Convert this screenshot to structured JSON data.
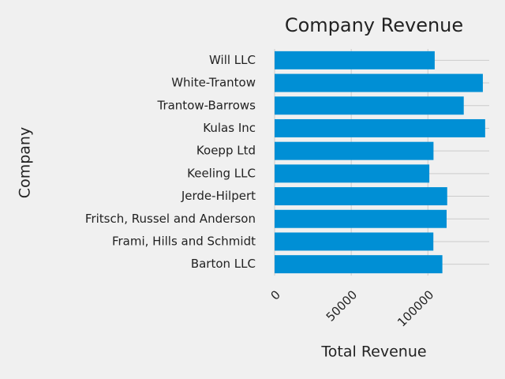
{
  "chart_data": {
    "type": "barh",
    "title": "Company Revenue",
    "xlabel": "Total Revenue",
    "ylabel": "Company",
    "categories": [
      "Barton LLC",
      "Frami, Hills and Schmidt",
      "Fritsch, Russel and Anderson",
      "Jerde-Hilpert",
      "Keeling LLC",
      "Koepp Ltd",
      "Kulas Inc",
      "Trantow-Barrows",
      "White-Trantow",
      "Will LLC"
    ],
    "values": [
      109438.5,
      103569.59,
      112214.71,
      112591.43,
      100934.3,
      103660.54,
      137351.96,
      123381.38,
      135841.99,
      104437.6
    ],
    "color": "#008fd5",
    "xlim": [
      0,
      140000
    ],
    "xticks": [
      0,
      50000,
      100000
    ],
    "grid": true
  }
}
